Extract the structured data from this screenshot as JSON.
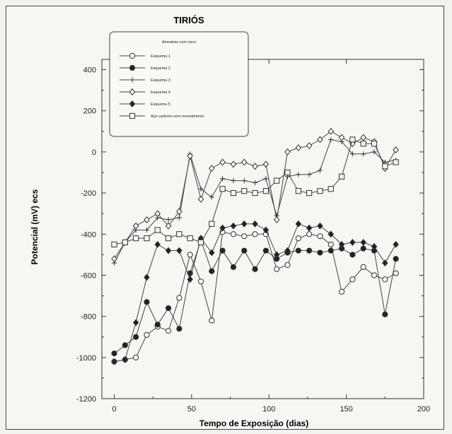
{
  "chart_data": {
    "type": "line",
    "title": "TIRIÓS",
    "xlabel": "Tempo de Exposição (dias)",
    "ylabel": "Potencial (mV) ecs",
    "xlim": [
      -8,
      200
    ],
    "ylim": [
      -1200,
      450
    ],
    "xticks": [
      0,
      50,
      100,
      150,
      200
    ],
    "yticks": [
      -1200,
      -1000,
      -800,
      -600,
      -400,
      -200,
      0,
      200,
      400
    ],
    "legend": {
      "title": "Amostras com risco",
      "placement": "top-left"
    },
    "series": [
      {
        "name": "Esquema 1",
        "marker": "open-circle",
        "x": [
          0,
          7,
          14,
          21,
          28,
          35,
          42,
          49,
          56,
          63,
          70,
          77,
          84,
          91,
          98,
          105,
          112,
          119,
          126,
          133,
          140,
          147,
          154,
          161,
          168,
          175,
          182
        ],
        "y": [
          -1020,
          -1010,
          -1000,
          -890,
          -850,
          -870,
          -710,
          -500,
          -630,
          -820,
          -390,
          -400,
          -410,
          -400,
          -400,
          -570,
          -550,
          -420,
          -400,
          -410,
          -450,
          -680,
          -620,
          -560,
          -600,
          -620,
          -590
        ]
      },
      {
        "name": "Esquema 2",
        "marker": "filled-circle",
        "x": [
          0,
          7,
          14,
          21,
          28,
          35,
          42,
          49,
          56,
          63,
          70,
          77,
          84,
          91,
          98,
          105,
          112,
          119,
          126,
          133,
          140,
          147,
          154,
          161,
          168,
          175,
          182
        ],
        "y": [
          -980,
          -940,
          -900,
          -730,
          -840,
          -760,
          -860,
          -590,
          -430,
          -580,
          -480,
          -560,
          -480,
          -570,
          -480,
          -520,
          -490,
          -480,
          -480,
          -490,
          -480,
          -470,
          -500,
          -470,
          -480,
          -790,
          -520
        ]
      },
      {
        "name": "Esquema 3",
        "marker": "plus",
        "x": [
          0,
          7,
          14,
          21,
          28,
          35,
          42,
          49,
          56,
          63,
          70,
          77,
          84,
          91,
          98,
          105,
          112,
          119,
          126,
          133,
          140,
          147,
          154,
          161,
          168,
          175,
          182
        ],
        "y": [
          -540,
          -440,
          -380,
          -380,
          -320,
          -330,
          -320,
          -10,
          -180,
          -220,
          -130,
          -140,
          -140,
          -150,
          -130,
          -310,
          -120,
          -110,
          -110,
          -90,
          60,
          50,
          -10,
          -10,
          0,
          -50,
          -40
        ]
      },
      {
        "name": "Esquema 4",
        "marker": "open-diamond",
        "x": [
          0,
          7,
          14,
          21,
          28,
          35,
          42,
          49,
          56,
          63,
          70,
          77,
          84,
          91,
          98,
          105,
          112,
          119,
          126,
          133,
          140,
          147,
          154,
          161,
          168,
          175,
          182
        ],
        "y": [
          -520,
          -440,
          -360,
          -330,
          -300,
          -360,
          -290,
          -20,
          -230,
          -80,
          -50,
          -60,
          -50,
          -70,
          -60,
          -330,
          0,
          20,
          30,
          60,
          100,
          70,
          40,
          70,
          50,
          -80,
          10
        ]
      },
      {
        "name": "Esquema 5",
        "marker": "filled-diamond",
        "x": [
          0,
          7,
          14,
          21,
          28,
          35,
          42,
          49,
          56,
          63,
          70,
          77,
          84,
          91,
          98,
          105,
          112,
          119,
          126,
          133,
          140,
          147,
          154,
          161,
          168,
          175,
          182
        ],
        "y": [
          -1020,
          -1010,
          -830,
          -610,
          -450,
          -480,
          -480,
          -620,
          -420,
          -490,
          -370,
          -360,
          -350,
          -350,
          -380,
          -500,
          -480,
          -350,
          -370,
          -360,
          -400,
          -450,
          -440,
          -440,
          -460,
          -540,
          -450
        ]
      },
      {
        "name": "Aço carbono sem revestimento",
        "marker": "open-square",
        "x": [
          0,
          7,
          14,
          21,
          28,
          35,
          42,
          49,
          56,
          63,
          70,
          77,
          84,
          91,
          98,
          105,
          112,
          119,
          126,
          133,
          140,
          147,
          154,
          161,
          168,
          175,
          182
        ],
        "y": [
          -450,
          -440,
          -420,
          -420,
          -380,
          -420,
          -400,
          -420,
          -440,
          -350,
          -180,
          -200,
          -190,
          -200,
          -190,
          -140,
          -100,
          -190,
          -200,
          -190,
          -180,
          -120,
          60,
          40,
          40,
          -70,
          -50
        ]
      }
    ]
  }
}
